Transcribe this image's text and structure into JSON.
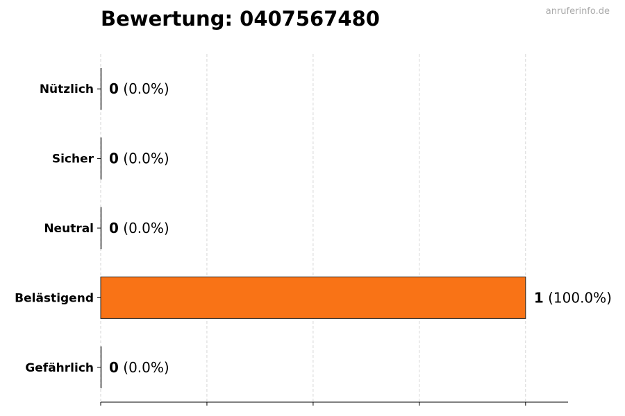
{
  "chart_data": {
    "type": "bar",
    "orientation": "horizontal",
    "title": "Bewertung: 0407567480",
    "watermark": "anruferinfo.de",
    "categories": [
      "Nützlich",
      "Sicher",
      "Neutral",
      "Belästigend",
      "Gefährlich"
    ],
    "values": [
      0,
      0,
      0,
      1,
      0
    ],
    "labels": [
      "(0.0%)",
      "(0.0%)",
      "(0.0%)",
      "(100.0%)",
      "(0.0%)"
    ],
    "xlim": [
      0,
      1.1
    ],
    "xticks": [
      0,
      0.25,
      0.5,
      0.75,
      1
    ],
    "xtick_labels_shown": false,
    "grid": "x dashed",
    "bar_color": "#f97316",
    "edge_color": "#222222"
  }
}
